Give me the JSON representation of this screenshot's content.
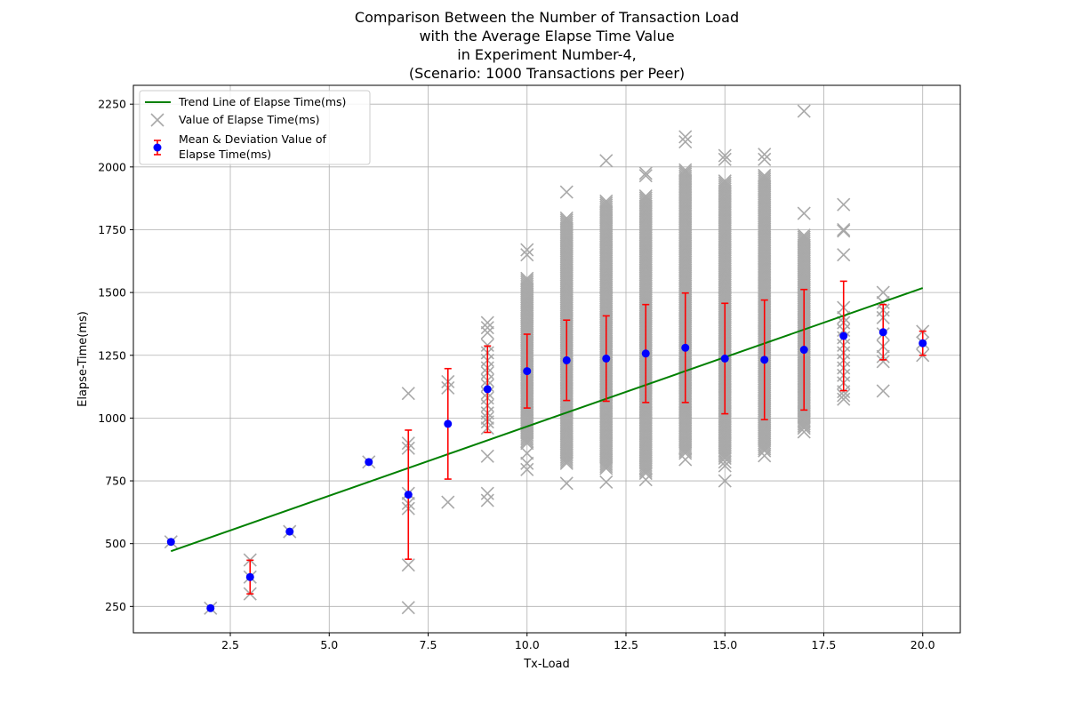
{
  "chart_data": {
    "type": "scatter",
    "title_lines": [
      "Comparison Between the Number of Transaction Load",
      "with the Average Elapse Time Value",
      "in Experiment Number-4,",
      "(Scenario: 1000 Transactions per Peer)"
    ],
    "xlabel": "Tx-Load",
    "ylabel": "Elapse-Time(ms)",
    "xlim": [
      0.05,
      20.95
    ],
    "ylim": [
      145,
      2325
    ],
    "x_ticks": [
      2.5,
      5.0,
      7.5,
      10.0,
      12.5,
      15.0,
      17.5,
      20.0
    ],
    "x_tick_labels": [
      "2.5",
      "5.0",
      "7.5",
      "10.0",
      "12.5",
      "15.0",
      "17.5",
      "20.0"
    ],
    "y_ticks": [
      250,
      500,
      750,
      1000,
      1250,
      1500,
      1750,
      2000,
      2250
    ],
    "y_tick_labels": [
      "250",
      "500",
      "750",
      "1000",
      "1250",
      "1500",
      "1750",
      "2000",
      "2250"
    ],
    "grid": true,
    "legend_position": "upper-left",
    "legend": [
      {
        "label": "Trend Line of Elapse Time(ms)",
        "kind": "line"
      },
      {
        "label": "Value of Elapse Time(ms)",
        "kind": "x-marker"
      },
      {
        "label_lines": [
          "Mean & Deviation Value of",
          "Elapse Time(ms)"
        ],
        "kind": "errorbar"
      }
    ],
    "colors": {
      "trend": "#008000",
      "scatter": "#a9a9a9",
      "mean": "#0000ff",
      "errorbar": "#ff0000",
      "grid": "#b0b0b0"
    },
    "trend_line": {
      "x": [
        1,
        20
      ],
      "y": [
        470,
        1518
      ]
    },
    "mean_deviation": [
      {
        "x": 1,
        "mean": 507,
        "std": 0
      },
      {
        "x": 2,
        "mean": 243,
        "std": 0
      },
      {
        "x": 3,
        "mean": 367,
        "std": 67
      },
      {
        "x": 4,
        "mean": 548,
        "std": 0
      },
      {
        "x": 6,
        "mean": 825,
        "std": 0
      },
      {
        "x": 7,
        "mean": 695,
        "std": 257
      },
      {
        "x": 8,
        "mean": 977,
        "std": 220
      },
      {
        "x": 9,
        "mean": 1115,
        "std": 172
      },
      {
        "x": 10,
        "mean": 1187,
        "std": 147
      },
      {
        "x": 11,
        "mean": 1230,
        "std": 160
      },
      {
        "x": 12,
        "mean": 1237,
        "std": 170
      },
      {
        "x": 13,
        "mean": 1257,
        "std": 195
      },
      {
        "x": 14,
        "mean": 1280,
        "std": 218
      },
      {
        "x": 15,
        "mean": 1237,
        "std": 220
      },
      {
        "x": 16,
        "mean": 1232,
        "std": 238
      },
      {
        "x": 17,
        "mean": 1272,
        "std": 240
      },
      {
        "x": 18,
        "mean": 1327,
        "std": 218
      },
      {
        "x": 19,
        "mean": 1342,
        "std": 110
      },
      {
        "x": 20,
        "mean": 1298,
        "std": 48
      }
    ],
    "scatter_points": [
      {
        "x": 1,
        "y": [
          507
        ]
      },
      {
        "x": 2,
        "y": [
          243
        ]
      },
      {
        "x": 3,
        "y": [
          300,
          367,
          435
        ]
      },
      {
        "x": 4,
        "y": [
          548
        ]
      },
      {
        "x": 6,
        "y": [
          825
        ]
      },
      {
        "x": 7,
        "y": [
          245,
          415,
          640,
          660,
          700,
          880,
          900,
          1098
        ]
      },
      {
        "x": 8,
        "y": [
          665,
          1120,
          1145
        ]
      },
      {
        "x": 9,
        "y": [
          672,
          700,
          848,
          960,
          985,
          1000,
          1020,
          1050,
          1080,
          1100,
          1130,
          1150,
          1180,
          1200,
          1230,
          1260,
          1290,
          1340,
          1360,
          1380
        ]
      },
      {
        "x": 10,
        "y": [
          795,
          820,
          860,
          1650,
          1670
        ]
      },
      {
        "x": 11,
        "y": [
          740,
          1900
        ]
      },
      {
        "x": 12,
        "y": [
          745,
          2025
        ]
      },
      {
        "x": 13,
        "y": [
          755,
          1965,
          1975
        ]
      },
      {
        "x": 14,
        "y": [
          835,
          2100,
          2120
        ]
      },
      {
        "x": 15,
        "y": [
          750,
          810,
          825,
          2030,
          2045
        ]
      },
      {
        "x": 16,
        "y": [
          850,
          2030,
          2050
        ]
      },
      {
        "x": 17,
        "y": [
          945,
          1815,
          2222
        ]
      },
      {
        "x": 18,
        "y": [
          1075,
          1090,
          1105,
          1140,
          1170,
          1200,
          1230,
          1260,
          1290,
          1320,
          1350,
          1380,
          1400,
          1440,
          1650,
          1745,
          1750,
          1850
        ]
      },
      {
        "x": 19,
        "y": [
          1108,
          1225,
          1245,
          1285,
          1335,
          1400,
          1430,
          1460,
          1500
        ]
      },
      {
        "x": 20,
        "y": [
          1250,
          1300,
          1345
        ]
      }
    ],
    "scatter_bands": [
      {
        "x": 10,
        "y_min": 900,
        "y_max": 1560
      },
      {
        "x": 11,
        "y_min": 820,
        "y_max": 1800
      },
      {
        "x": 12,
        "y_min": 800,
        "y_max": 1870
      },
      {
        "x": 13,
        "y_min": 780,
        "y_max": 1890
      },
      {
        "x": 14,
        "y_min": 860,
        "y_max": 1990
      },
      {
        "x": 15,
        "y_min": 840,
        "y_max": 1950
      },
      {
        "x": 16,
        "y_min": 870,
        "y_max": 1970
      },
      {
        "x": 17,
        "y_min": 960,
        "y_max": 1730
      }
    ]
  }
}
